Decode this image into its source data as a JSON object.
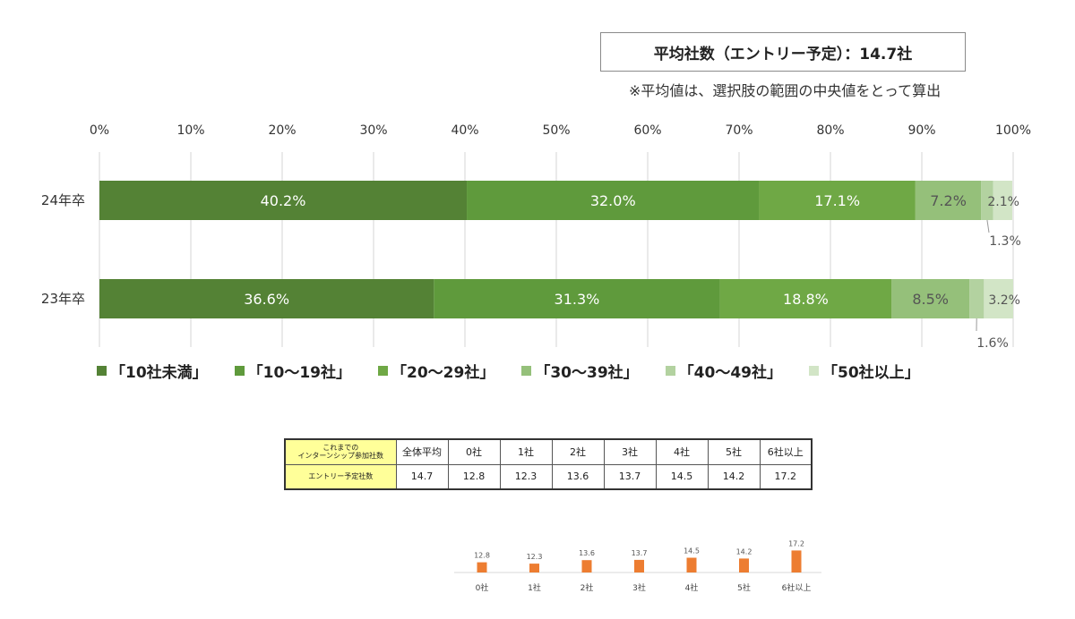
{
  "summary_title": "平均社数（エントリー予定）：14.7社",
  "note": "※平均値は、選択肢の範囲の中央値をとって算出",
  "chart_data": [
    {
      "type": "bar",
      "orientation": "horizontal-stacked-100",
      "categories": [
        "24年卒",
        "23年卒"
      ],
      "xlim": [
        0,
        100
      ],
      "x_ticks": [
        "0%",
        "10%",
        "20%",
        "30%",
        "40%",
        "50%",
        "60%",
        "70%",
        "80%",
        "90%",
        "100%"
      ],
      "grid": true,
      "legend_position": "bottom",
      "series": [
        {
          "name": "「10社未満」",
          "color": "#548235",
          "values": [
            40.2,
            36.6
          ]
        },
        {
          "name": "「10～19社」",
          "color": "#5f9a3c",
          "values": [
            32.0,
            31.3
          ]
        },
        {
          "name": "「20～29社」",
          "color": "#6fa845",
          "values": [
            17.1,
            18.8
          ]
        },
        {
          "name": "「30～39社」",
          "color": "#95c07a",
          "values": [
            7.2,
            8.5
          ]
        },
        {
          "name": "「40～49社」",
          "color": "#b3d2a0",
          "values": [
            1.3,
            1.6
          ]
        },
        {
          "name": "「50社以上」",
          "color": "#d2e5c6",
          "values": [
            2.1,
            3.2
          ]
        }
      ],
      "data_labels": [
        [
          "40.2%",
          "32.0%",
          "17.1%",
          "7.2%",
          "1.3%",
          "2.1%"
        ],
        [
          "36.6%",
          "31.3%",
          "18.8%",
          "8.5%",
          "1.6%",
          "3.2%"
        ]
      ]
    },
    {
      "type": "bar",
      "categories": [
        "0社",
        "1社",
        "2社",
        "3社",
        "4社",
        "5社",
        "6社以上"
      ],
      "values": [
        12.8,
        12.3,
        13.6,
        13.7,
        14.5,
        14.2,
        17.2
      ],
      "data_labels": [
        "12.8",
        "12.3",
        "13.6",
        "13.7",
        "14.5",
        "14.2",
        "17.2"
      ],
      "color": "#ed7d31",
      "grid": false
    }
  ],
  "table": {
    "header_label_line1": "これまでの",
    "header_label_line2": "インターンシップ参加社数",
    "row_label": "エントリー予定社数",
    "columns": [
      "全体平均",
      "0社",
      "1社",
      "2社",
      "3社",
      "4社",
      "5社",
      "6社以上"
    ],
    "values": [
      "14.7",
      "12.8",
      "12.3",
      "13.6",
      "13.7",
      "14.5",
      "14.2",
      "17.2"
    ]
  }
}
